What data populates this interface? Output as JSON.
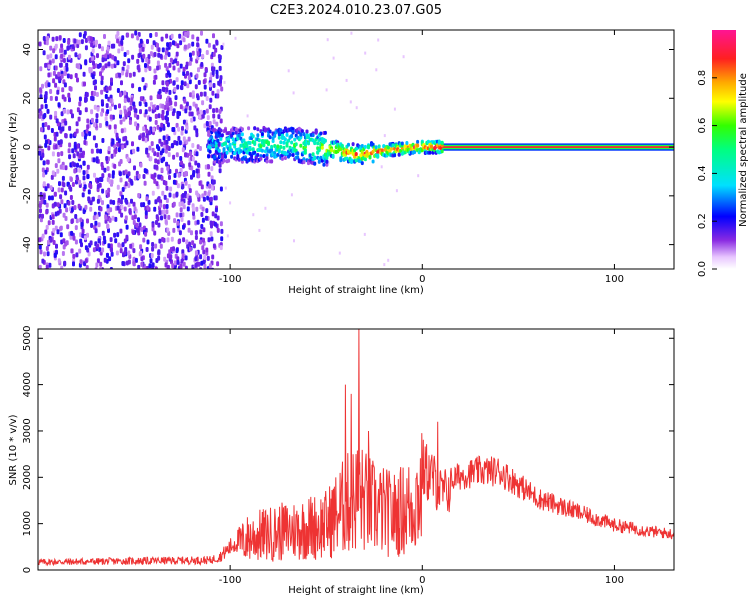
{
  "figure_title": "C2E3.2024.010.23.07.G05",
  "chart_data": [
    {
      "type": "heatmap",
      "title": "C2E3.2024.010.23.07.G05",
      "xlabel": "Height of straight line (km)",
      "ylabel": "Frequency (Hz)",
      "xlim": [
        -200,
        131
      ],
      "ylim": [
        -50,
        48
      ],
      "xticks": [
        -100,
        0,
        100
      ],
      "yticks": [
        -40,
        -20,
        0,
        20,
        40
      ],
      "colorbar": {
        "label": "Normalized spectral amplitude",
        "range": [
          0,
          1
        ],
        "ticks": [
          0.0,
          0.2,
          0.4,
          0.6,
          0.8
        ],
        "colormap": "white-magenta-blue-cyan-green-yellow-red-pink"
      },
      "features": {
        "noise_region_x": [
          -200,
          -105
        ],
        "signal_track": [
          {
            "x": -112,
            "freq": 0.5,
            "amp": 0.35
          },
          {
            "x": -90,
            "freq": 1.0,
            "amp": 0.5
          },
          {
            "x": -70,
            "freq": 1.0,
            "amp": 0.5
          },
          {
            "x": -50,
            "freq": -0.5,
            "amp": 0.65
          },
          {
            "x": -35,
            "freq": -3.0,
            "amp": 0.85
          },
          {
            "x": -20,
            "freq": -1.5,
            "amp": 0.85
          },
          {
            "x": -5,
            "freq": 0,
            "amp": 0.9
          },
          {
            "x": 10,
            "freq": 0,
            "amp": 0.95
          },
          {
            "x": 131,
            "freq": 0,
            "amp": 0.95
          }
        ]
      }
    },
    {
      "type": "line",
      "xlabel": "Height of straight line (km)",
      "ylabel": "SNR (10 * v/v)",
      "xlim": [
        -200,
        131
      ],
      "ylim": [
        0,
        5200
      ],
      "xticks": [
        -100,
        0,
        100
      ],
      "yticks": [
        0,
        1000,
        2000,
        3000,
        4000,
        5000
      ],
      "line_color": "#ee3333",
      "envelope": {
        "x": [
          -200,
          -110,
          -105,
          -95,
          -90,
          -70,
          -50,
          -45,
          -40,
          -35,
          -33,
          -30,
          -25,
          -15,
          -5,
          0,
          5,
          10,
          20,
          30,
          40,
          50,
          60,
          80,
          100,
          120,
          131
        ],
        "y": [
          200,
          250,
          350,
          800,
          1000,
          1200,
          1400,
          1700,
          2000,
          2200,
          2300,
          2100,
          1900,
          1700,
          2000,
          2500,
          2300,
          1900,
          2100,
          2200,
          2200,
          1900,
          1600,
          1300,
          1000,
          850,
          800
        ]
      },
      "peaks": [
        {
          "x": -33,
          "y": 5200
        },
        {
          "x": -40,
          "y": 4000
        },
        {
          "x": -37,
          "y": 3800
        },
        {
          "x": 8,
          "y": 3200
        },
        {
          "x": -28,
          "y": 3000
        }
      ]
    }
  ]
}
